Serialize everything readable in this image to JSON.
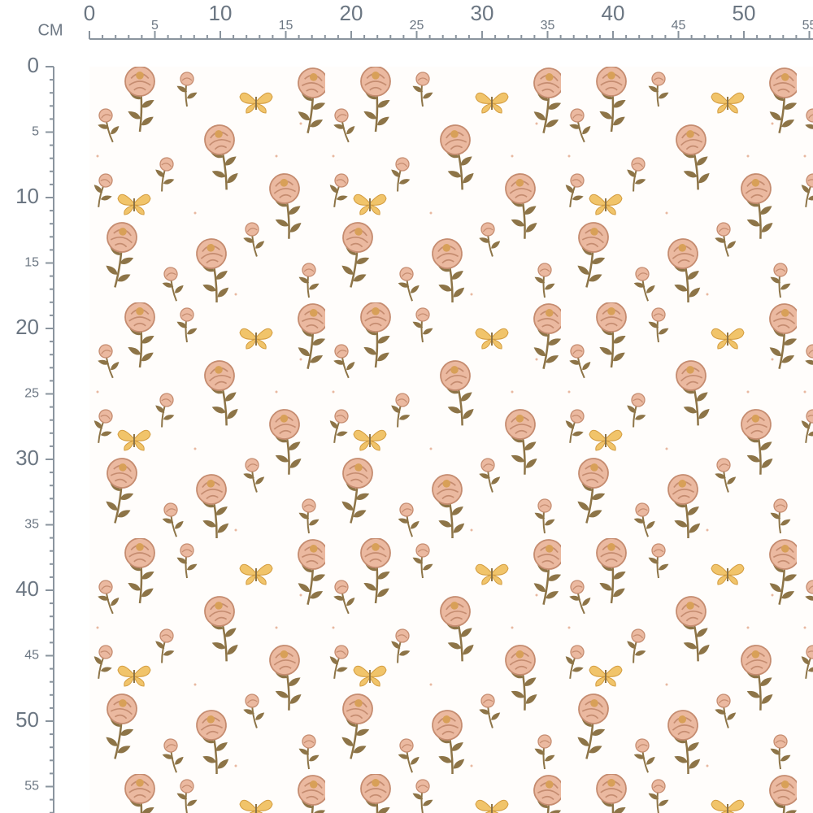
{
  "unit": "CM",
  "top_ruler": {
    "labels": [
      0,
      5,
      10,
      15,
      20,
      25,
      30,
      35,
      40,
      45,
      50,
      55
    ]
  },
  "left_ruler": {
    "labels": [
      0,
      5,
      10,
      15,
      20,
      25,
      30,
      35,
      40,
      45,
      50,
      55
    ]
  }
}
